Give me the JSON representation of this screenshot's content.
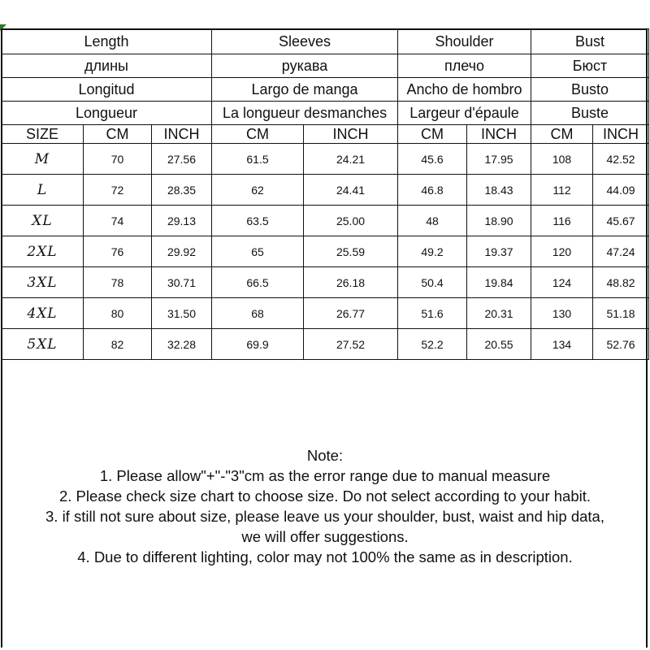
{
  "headers": [
    [
      "Length",
      "Sleeves",
      "Shoulder",
      "Bust"
    ],
    [
      "длины",
      "рукава",
      "плечо",
      "Бюст"
    ],
    [
      "Longitud",
      "Largo de manga",
      "Ancho de hombro",
      "Busto"
    ],
    [
      "Longueur",
      "La longueur desmanches",
      "Largeur d'épaule",
      "Buste"
    ]
  ],
  "subheaders": [
    "SIZE",
    "CM",
    "INCH",
    "CM",
    "INCH",
    "CM",
    "INCH",
    "CM",
    "INCH"
  ],
  "rows": [
    [
      "M",
      "70",
      "27.56",
      "61.5",
      "24.21",
      "45.6",
      "17.95",
      "108",
      "42.52"
    ],
    [
      "L",
      "72",
      "28.35",
      "62",
      "24.41",
      "46.8",
      "18.43",
      "112",
      "44.09"
    ],
    [
      "XL",
      "74",
      "29.13",
      "63.5",
      "25.00",
      "48",
      "18.90",
      "116",
      "45.67"
    ],
    [
      "2XL",
      "76",
      "29.92",
      "65",
      "25.59",
      "49.2",
      "19.37",
      "120",
      "47.24"
    ],
    [
      "3XL",
      "78",
      "30.71",
      "66.5",
      "26.18",
      "50.4",
      "19.84",
      "124",
      "48.82"
    ],
    [
      "4XL",
      "80",
      "31.50",
      "68",
      "26.77",
      "51.6",
      "20.31",
      "130",
      "51.18"
    ],
    [
      "5XL",
      "82",
      "32.28",
      "69.9",
      "27.52",
      "52.2",
      "20.55",
      "134",
      "52.76"
    ]
  ],
  "note": {
    "title": "Note:",
    "lines": [
      "1. Please allow\"+\"-\"3\"cm as the error range due to manual measure",
      "2. Please check size chart to choose size. Do not select according to your habit.",
      "3. if still not sure about size, please leave us your shoulder, bust, waist and hip data,",
      "we will offer suggestions.",
      "4. Due to different lighting, color may not 100% the same as in description."
    ]
  }
}
